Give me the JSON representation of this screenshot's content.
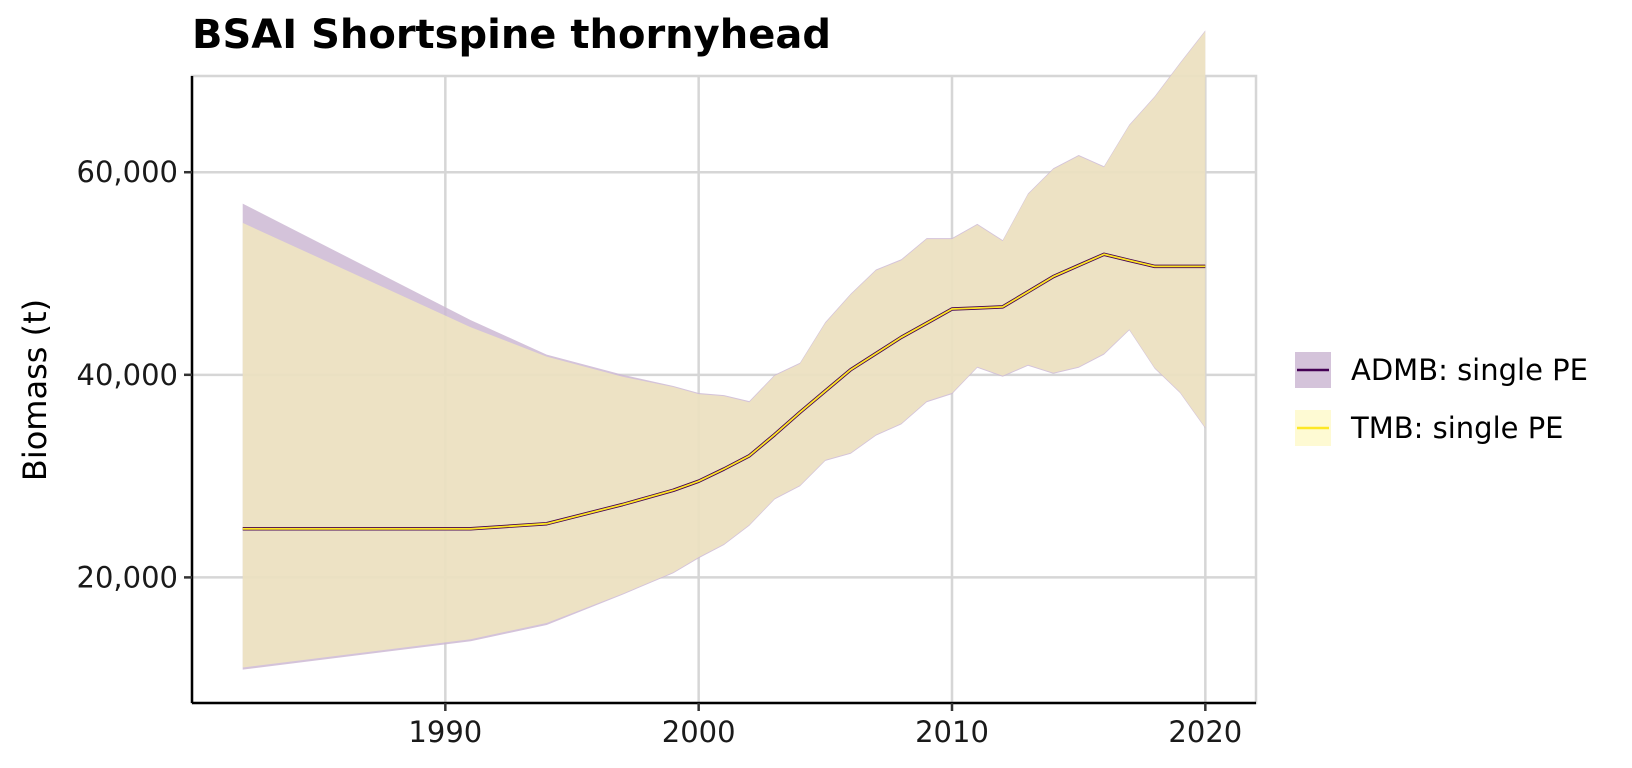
{
  "chart_data": {
    "type": "area",
    "title": "BSAI Shortspine thornyhead",
    "xlabel": "",
    "ylabel": "Biomass (t)",
    "xlim": [
      1980,
      2022
    ],
    "ylim": [
      7600,
      69500
    ],
    "x_ticks": [
      1990,
      2000,
      2010,
      2020
    ],
    "x_tick_labels": [
      "1990",
      "2000",
      "2010",
      "2020"
    ],
    "y_ticks": [
      20000,
      40000,
      60000
    ],
    "y_tick_labels": [
      "20,000",
      "40,000",
      "60,000"
    ],
    "grid": true,
    "legend_position": "right",
    "x": [
      1982,
      1991,
      1994,
      1997,
      1999,
      2000,
      2001,
      2002,
      2003,
      2004,
      2005,
      2006,
      2007,
      2008,
      2009,
      2010,
      2011,
      2012,
      2013,
      2014,
      2015,
      2016,
      2017,
      2018,
      2019,
      2020
    ],
    "series": [
      {
        "name": "ADMB: single PE",
        "color": "#440154",
        "fill": "#cdb9d4",
        "values": [
          24800,
          24800,
          25300,
          27200,
          28600,
          29500,
          30700,
          32000,
          34100,
          36300,
          38400,
          40500,
          42100,
          43700,
          45100,
          46500,
          46600,
          46700,
          48200,
          49700,
          50800,
          51900,
          51300,
          50700,
          50700,
          50700
        ],
        "upper": [
          56900,
          45400,
          42000,
          40000,
          38900,
          38200,
          38000,
          37400,
          40000,
          41200,
          45200,
          48000,
          50400,
          51400,
          53500,
          53500,
          54900,
          53300,
          57900,
          60400,
          61700,
          60600,
          64700,
          67500,
          70800,
          74000
        ],
        "lower": [
          10900,
          13700,
          15300,
          18300,
          20400,
          21900,
          23200,
          25100,
          27700,
          29000,
          31500,
          32200,
          34000,
          35100,
          37300,
          38100,
          40700,
          39800,
          40900,
          40100,
          40700,
          42000,
          44400,
          40600,
          38200,
          34700
        ]
      },
      {
        "name": "TMB: single PE",
        "color": "#fde725",
        "fill": "#fef6b6",
        "values": [
          24800,
          24800,
          25300,
          27200,
          28600,
          29500,
          30700,
          32000,
          34100,
          36300,
          38400,
          40500,
          42100,
          43700,
          45100,
          46500,
          46600,
          46700,
          48200,
          49700,
          50800,
          51900,
          51300,
          50700,
          50700,
          50700
        ],
        "upper": [
          55000,
          44700,
          41800,
          39800,
          38800,
          38100,
          37900,
          37300,
          39900,
          41100,
          45100,
          47900,
          50300,
          51300,
          53400,
          53400,
          54800,
          53200,
          57800,
          60300,
          61600,
          60500,
          64600,
          67400,
          70700,
          73900
        ],
        "lower": [
          11100,
          13900,
          15500,
          18400,
          20500,
          22000,
          23300,
          25200,
          27800,
          29100,
          31600,
          32300,
          34100,
          35200,
          37400,
          38200,
          40800,
          39900,
          41000,
          40200,
          40800,
          42100,
          44500,
          40700,
          38300,
          34800
        ]
      }
    ]
  }
}
